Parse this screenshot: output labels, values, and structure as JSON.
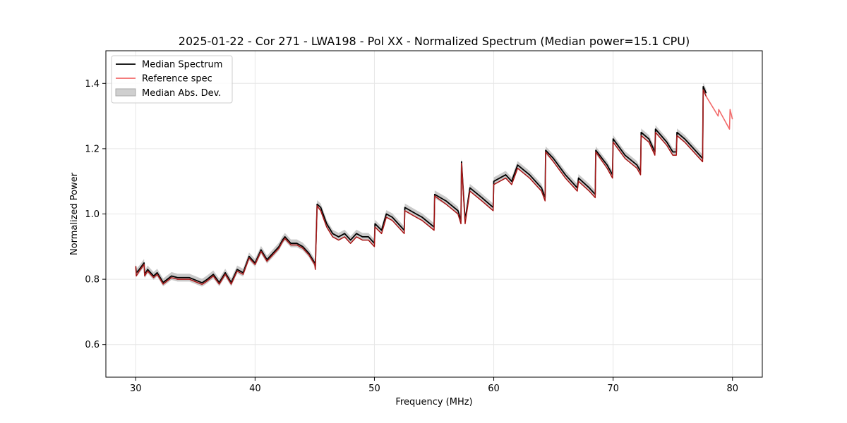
{
  "chart_data": {
    "type": "line",
    "title": "2025-01-22 - Cor 271 - LWA198 - Pol XX - Normalized Spectrum (Median power=15.1 CPU)",
    "xlabel": "Frequency (MHz)",
    "ylabel": "Normalized Power",
    "xlim": [
      27.5,
      82.5
    ],
    "ylim": [
      0.5,
      1.5
    ],
    "xticks": [
      30,
      40,
      50,
      60,
      70,
      80
    ],
    "yticks": [
      0.6,
      0.8,
      1.0,
      1.2,
      1.4
    ],
    "xtick_labels": [
      "30",
      "40",
      "50",
      "60",
      "70",
      "80"
    ],
    "ytick_labels": [
      "0.6",
      "0.8",
      "1.0",
      "1.2",
      "1.4"
    ],
    "grid": true,
    "legend_position": "upper-left",
    "colors": {
      "median": "#000000",
      "reference": "#f26a6a",
      "reference_overlap": "#8b0000",
      "mad_band": "#bdbdbd",
      "grid": "#e6e6e6"
    },
    "series": [
      {
        "name": "Median Spectrum",
        "x": [
          30.0,
          30.05,
          30.3,
          30.7,
          30.75,
          31.0,
          31.5,
          31.8,
          32.3,
          33.0,
          33.5,
          34.5,
          35.5,
          35.6,
          36.0,
          36.5,
          37.0,
          37.5,
          38.0,
          38.5,
          39.0,
          39.5,
          40.0,
          40.5,
          41.0,
          41.5,
          42.0,
          42.3,
          42.5,
          43.0,
          43.5,
          44.0,
          44.5,
          45.0,
          45.05,
          45.2,
          45.5,
          46.0,
          46.5,
          47.0,
          47.5,
          48.0,
          48.5,
          49.0,
          49.5,
          50.0,
          50.05,
          50.6,
          51.0,
          51.5,
          52.0,
          52.5,
          52.55,
          53.5,
          54.0,
          55.0,
          55.05,
          56.0,
          57.0,
          57.25,
          57.3,
          57.6,
          58.0,
          59.0,
          59.95,
          60.0,
          61.0,
          61.5,
          62.0,
          63.0,
          64.0,
          64.3,
          64.35,
          65.0,
          66.0,
          67.0,
          67.1,
          68.0,
          68.5,
          68.55,
          69.5,
          69.95,
          70.0,
          71.0,
          72.0,
          72.3,
          72.35,
          73.0,
          73.5,
          73.55,
          74.5,
          75.0,
          75.3,
          75.35,
          76.0,
          77.5,
          77.55,
          77.8
        ],
        "values": [
          0.84,
          0.82,
          0.83,
          0.85,
          0.815,
          0.83,
          0.81,
          0.82,
          0.79,
          0.81,
          0.805,
          0.805,
          0.79,
          0.79,
          0.8,
          0.815,
          0.79,
          0.82,
          0.79,
          0.83,
          0.82,
          0.87,
          0.85,
          0.89,
          0.86,
          0.88,
          0.9,
          0.92,
          0.93,
          0.91,
          0.91,
          0.9,
          0.88,
          0.85,
          0.84,
          1.03,
          1.02,
          0.97,
          0.94,
          0.93,
          0.94,
          0.92,
          0.94,
          0.93,
          0.93,
          0.91,
          0.97,
          0.95,
          1.0,
          0.99,
          0.97,
          0.95,
          1.02,
          1.0,
          0.99,
          0.96,
          1.06,
          1.04,
          1.01,
          0.98,
          1.16,
          0.98,
          1.08,
          1.05,
          1.02,
          1.1,
          1.12,
          1.1,
          1.15,
          1.12,
          1.08,
          1.05,
          1.195,
          1.17,
          1.12,
          1.08,
          1.11,
          1.08,
          1.06,
          1.195,
          1.15,
          1.12,
          1.23,
          1.18,
          1.15,
          1.13,
          1.25,
          1.23,
          1.19,
          1.26,
          1.22,
          1.19,
          1.19,
          1.25,
          1.23,
          1.17,
          1.39,
          1.37
        ],
        "color": "#000000"
      },
      {
        "name": "Reference spec",
        "x": [
          30.0,
          30.05,
          30.3,
          30.7,
          30.75,
          31.0,
          31.5,
          31.8,
          32.3,
          33.0,
          33.5,
          34.5,
          35.5,
          35.6,
          36.0,
          36.5,
          37.0,
          37.5,
          38.0,
          38.5,
          39.0,
          39.5,
          40.0,
          40.5,
          41.0,
          41.5,
          42.0,
          42.3,
          42.5,
          43.0,
          43.5,
          44.0,
          44.5,
          45.0,
          45.05,
          45.2,
          45.5,
          46.0,
          46.5,
          47.0,
          47.5,
          48.0,
          48.5,
          49.0,
          49.5,
          50.0,
          50.05,
          50.6,
          51.0,
          51.5,
          52.0,
          52.5,
          52.55,
          53.5,
          54.0,
          55.0,
          55.05,
          56.0,
          57.0,
          57.25,
          57.3,
          57.6,
          58.0,
          59.0,
          59.95,
          60.0,
          61.0,
          61.5,
          62.0,
          63.0,
          64.0,
          64.3,
          64.35,
          65.0,
          66.0,
          67.0,
          67.1,
          68.0,
          68.5,
          68.55,
          69.5,
          69.95,
          70.0,
          71.0,
          72.0,
          72.3,
          72.35,
          73.0,
          73.5,
          73.55,
          74.5,
          75.0,
          75.3,
          75.35,
          76.0,
          77.5,
          77.55,
          77.8,
          78.3,
          78.8,
          78.85,
          79.3,
          79.75,
          79.8,
          80.0
        ],
        "values": [
          0.84,
          0.81,
          0.825,
          0.845,
          0.81,
          0.825,
          0.805,
          0.815,
          0.785,
          0.805,
          0.8,
          0.8,
          0.785,
          0.785,
          0.795,
          0.81,
          0.785,
          0.815,
          0.785,
          0.825,
          0.815,
          0.865,
          0.845,
          0.885,
          0.855,
          0.875,
          0.895,
          0.915,
          0.925,
          0.905,
          0.905,
          0.895,
          0.875,
          0.845,
          0.83,
          1.025,
          1.01,
          0.96,
          0.93,
          0.92,
          0.93,
          0.91,
          0.93,
          0.92,
          0.92,
          0.9,
          0.96,
          0.94,
          0.99,
          0.98,
          0.96,
          0.94,
          1.01,
          0.99,
          0.98,
          0.95,
          1.055,
          1.03,
          1.0,
          0.97,
          1.155,
          0.97,
          1.07,
          1.04,
          1.01,
          1.09,
          1.11,
          1.09,
          1.14,
          1.11,
          1.07,
          1.04,
          1.19,
          1.16,
          1.11,
          1.07,
          1.1,
          1.07,
          1.05,
          1.19,
          1.14,
          1.11,
          1.22,
          1.17,
          1.14,
          1.12,
          1.24,
          1.22,
          1.18,
          1.25,
          1.21,
          1.18,
          1.18,
          1.24,
          1.22,
          1.16,
          1.38,
          1.36,
          1.33,
          1.3,
          1.32,
          1.29,
          1.26,
          1.32,
          1.29
        ],
        "color": "#f26a6a"
      },
      {
        "name": "Median Abs. Dev.",
        "type": "band",
        "halfwidth": 0.012,
        "color": "#bdbdbd"
      }
    ]
  }
}
